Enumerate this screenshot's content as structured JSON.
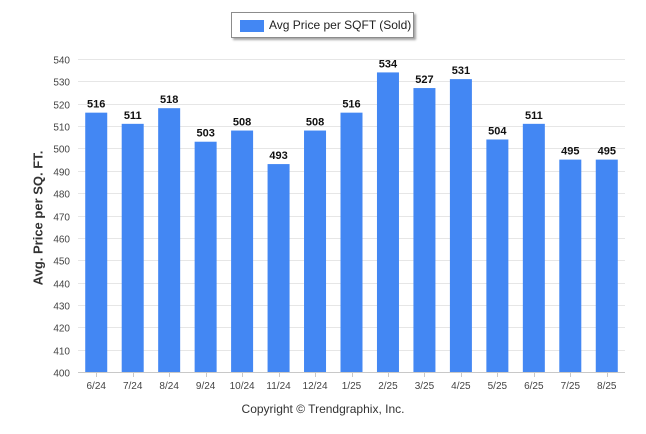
{
  "chart_data": {
    "type": "bar",
    "title": "",
    "xlabel": "",
    "ylabel": "Avg. Price per SQ. FT.",
    "ylim": [
      400,
      540
    ],
    "ytick_step": 10,
    "grid": true,
    "legend_position": "top-center",
    "categories": [
      "6/24",
      "7/24",
      "8/24",
      "9/24",
      "10/24",
      "11/24",
      "12/24",
      "1/25",
      "2/25",
      "3/25",
      "4/25",
      "5/25",
      "6/25",
      "7/25",
      "8/25"
    ],
    "series": [
      {
        "name": "Avg Price per SQFT (Sold)",
        "color": "#4387f3",
        "values": [
          516,
          511,
          518,
          503,
          508,
          493,
          508,
          516,
          534,
          527,
          531,
          504,
          511,
          495,
          495
        ]
      }
    ]
  },
  "footer": {
    "copyright": "Copyright © Trendgraphix, Inc."
  }
}
